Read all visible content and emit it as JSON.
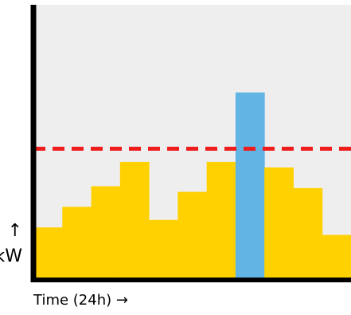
{
  "chart_data": {
    "type": "bar",
    "xlabel": "Time (24h) →",
    "ylabel_arrow": "↑",
    "ylabel": "kW",
    "ylim": [
      0,
      100
    ],
    "values": [
      28,
      39,
      50,
      63,
      32,
      47,
      63,
      100,
      60,
      49,
      24
    ],
    "highlight_index": 7,
    "reference_line": 70,
    "colors": {
      "plot_bg": "#eeeeee",
      "bar": "#ffd100",
      "highlight": "#62b4e4",
      "reference_line": "#ee1c1c",
      "axis": "#000000"
    }
  }
}
